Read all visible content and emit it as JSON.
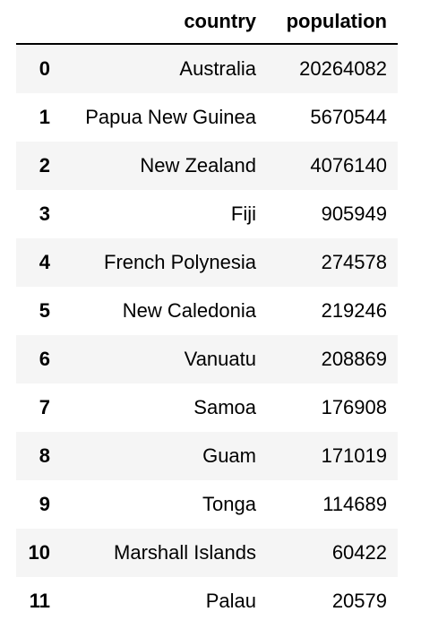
{
  "columns": {
    "index": "",
    "country": "country",
    "population": "population"
  },
  "rows": [
    {
      "index": "0",
      "country": "Australia",
      "population": "20264082"
    },
    {
      "index": "1",
      "country": "Papua New Guinea",
      "population": "5670544"
    },
    {
      "index": "2",
      "country": "New Zealand",
      "population": "4076140"
    },
    {
      "index": "3",
      "country": "Fiji",
      "population": "905949"
    },
    {
      "index": "4",
      "country": "French Polynesia",
      "population": "274578"
    },
    {
      "index": "5",
      "country": "New Caledonia",
      "population": "219246"
    },
    {
      "index": "6",
      "country": "Vanuatu",
      "population": "208869"
    },
    {
      "index": "7",
      "country": "Samoa",
      "population": "176908"
    },
    {
      "index": "8",
      "country": "Guam",
      "population": "171019"
    },
    {
      "index": "9",
      "country": "Tonga",
      "population": "114689"
    },
    {
      "index": "10",
      "country": "Marshall Islands",
      "population": "60422"
    },
    {
      "index": "11",
      "country": "Palau",
      "population": "20579"
    }
  ]
}
